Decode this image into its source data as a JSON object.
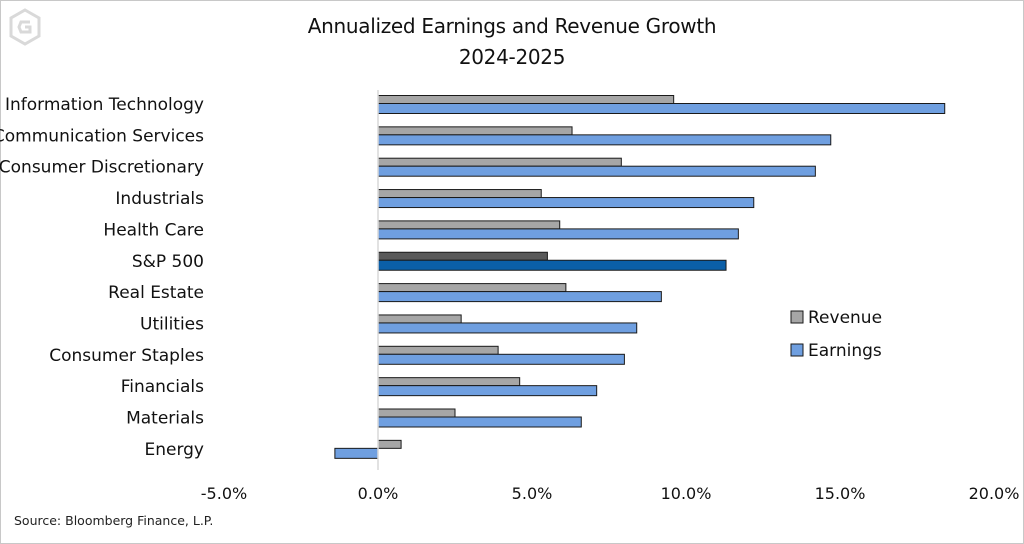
{
  "chart_data": {
    "type": "bar",
    "orientation": "horizontal",
    "title": "Annualized Earnings and Revenue Growth",
    "subtitle": "2024-2025",
    "categories": [
      "Information Technology",
      "Communication Services",
      "Consumer Discretionary",
      "Industrials",
      "Health Care",
      "S&P 500",
      "Real Estate",
      "Utilities",
      "Consumer Staples",
      "Financials",
      "Materials",
      "Energy"
    ],
    "highlight_category": "S&P 500",
    "series": [
      {
        "name": "Revenue",
        "color": "#a6a6a6",
        "highlight_color": "#595959",
        "values": [
          9.6,
          6.3,
          7.9,
          5.3,
          5.9,
          5.5,
          6.1,
          2.7,
          3.9,
          4.6,
          2.5,
          0.75
        ]
      },
      {
        "name": "Earnings",
        "color": "#6f9fe0",
        "highlight_color": "#0b5fa8",
        "values": [
          18.4,
          14.7,
          14.2,
          12.2,
          11.7,
          11.3,
          9.2,
          8.4,
          8.0,
          7.1,
          6.6,
          -1.4
        ]
      }
    ],
    "xlim": [
      -5.0,
      20.0
    ],
    "xticks": [
      "-5.0%",
      "0.0%",
      "5.0%",
      "10.0%",
      "15.0%",
      "20.0%"
    ],
    "xlabel": "",
    "ylabel": "",
    "grid": false,
    "legend_position": "right"
  },
  "source": "Source: Bloomberg Finance, L.P.",
  "logo_icon": "hexagon-g-logo-icon"
}
